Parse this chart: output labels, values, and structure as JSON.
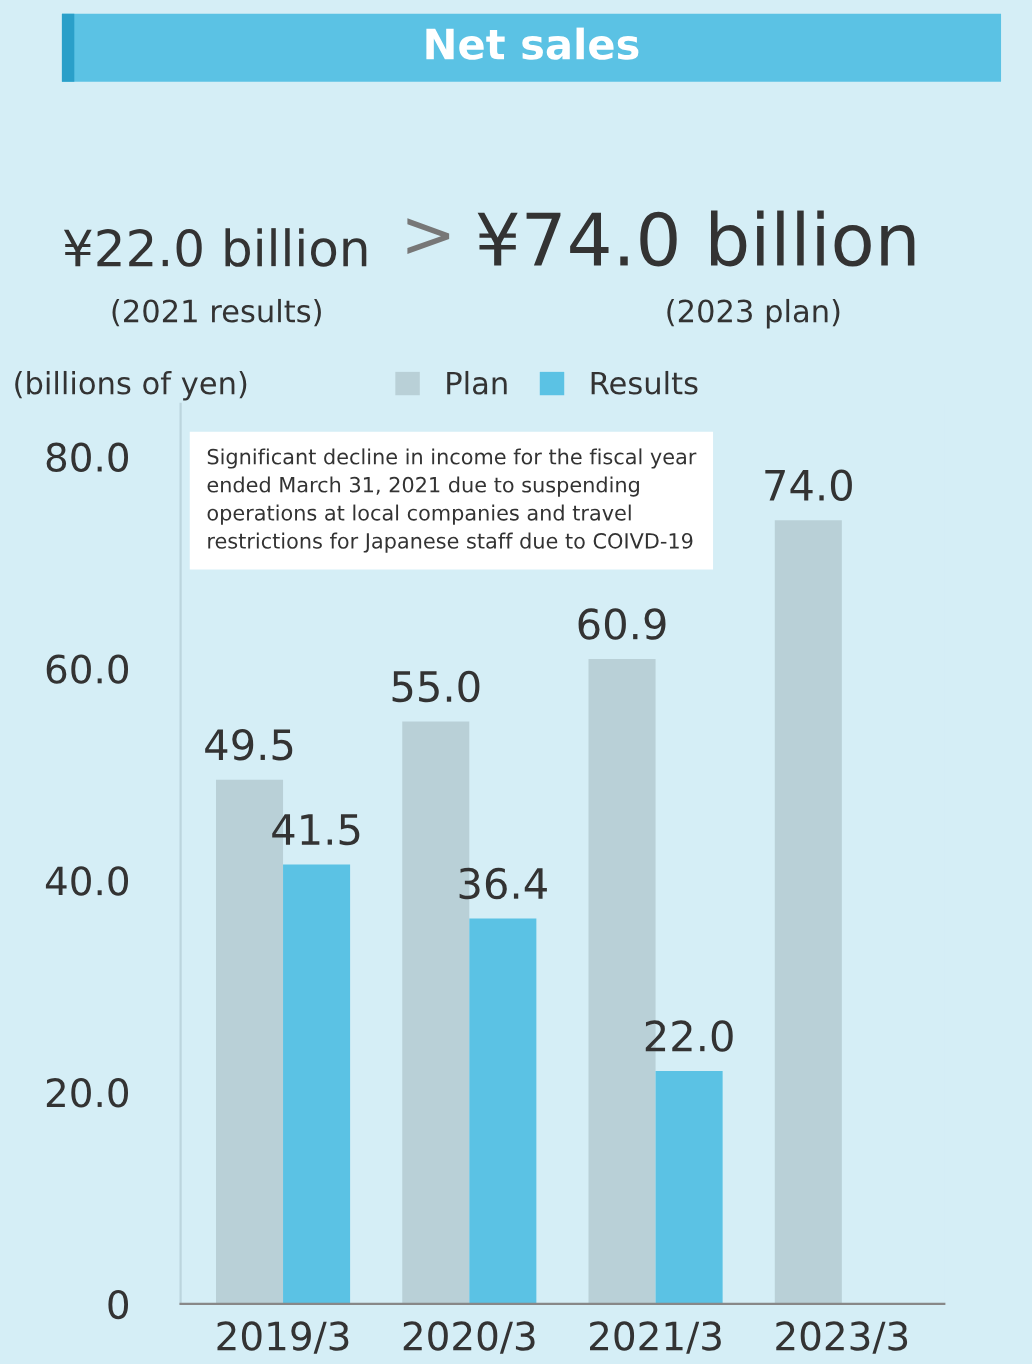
{
  "chart_data": {
    "type": "bar",
    "title": "Net sales",
    "ylabel": "(billions of yen)",
    "categories": [
      "2019/3",
      "2020/3",
      "2021/3",
      "2023/3"
    ],
    "series": [
      {
        "name": "Plan",
        "color": "#b9d0d7",
        "values": [
          49.5,
          55.0,
          60.9,
          74.0
        ],
        "value_labels": [
          "49.5",
          "55.0",
          "60.9",
          "74.0"
        ]
      },
      {
        "name": "Results",
        "color": "#5bc2e4",
        "values": [
          41.5,
          36.4,
          22.0,
          null
        ],
        "value_labels": [
          "41.5",
          "36.4",
          "22.0",
          null
        ]
      }
    ],
    "ylim": [
      0,
      85
    ],
    "yticks": [
      {
        "value": 0,
        "label": "0"
      },
      {
        "value": 20,
        "label": "20.0"
      },
      {
        "value": 40,
        "label": "40.0"
      },
      {
        "value": 60,
        "label": "60.0"
      },
      {
        "value": 80,
        "label": "80.0"
      }
    ],
    "grid": false,
    "legend": "top",
    "annotations": [
      "¥22.0 billion",
      ">",
      "¥74.0 billion",
      "(2021 results)",
      "(2023 plan)",
      "Significant decline in income for the fiscal year\nended March 31, 2021 due to suspending\noperations at local companies and travel\nrestrictions for Japanese staff due to COIVD-19"
    ]
  }
}
